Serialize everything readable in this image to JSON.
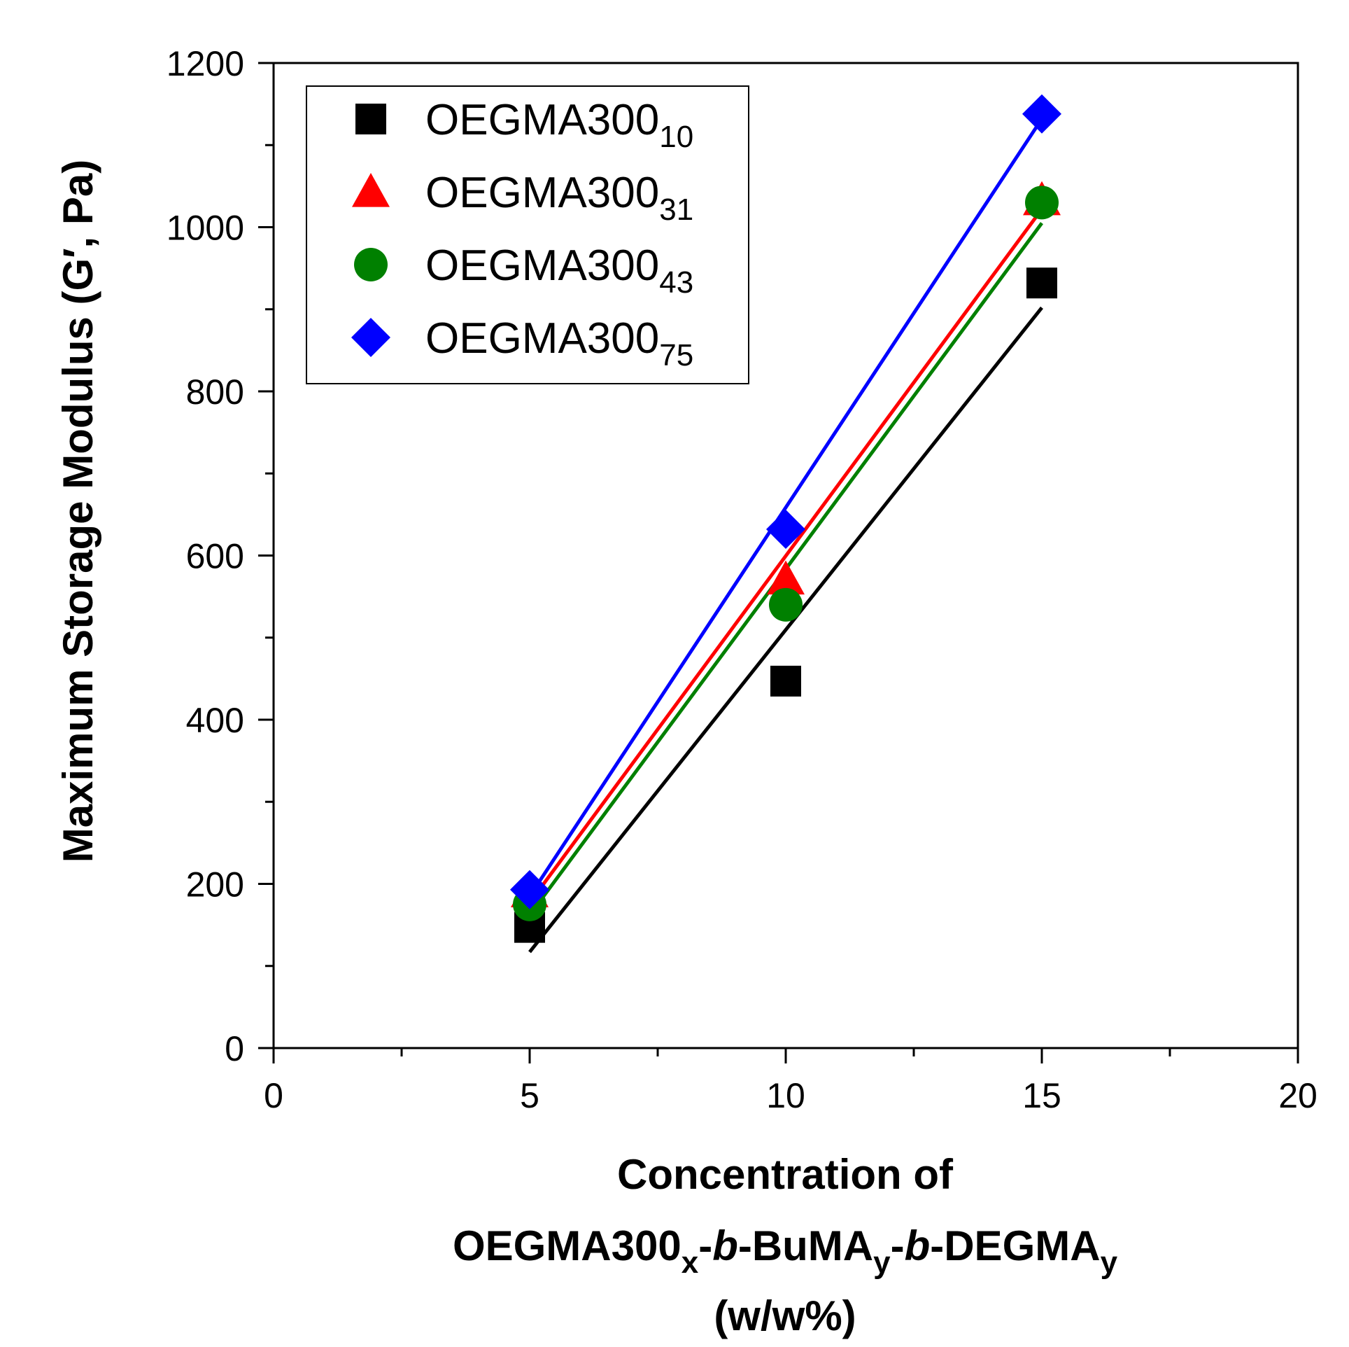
{
  "chart_data": {
    "type": "scatter",
    "title": "",
    "ylabel": "Maximum Storage Modulus (G′, Pa)",
    "xlabel": {
      "line1": "Concentration of",
      "line2_parts": [
        {
          "text": "OEGMA300",
          "style": "normal"
        },
        {
          "text": "x",
          "style": "sub"
        },
        {
          "text": "-",
          "style": "normal"
        },
        {
          "text": "b",
          "style": "italic"
        },
        {
          "text": "-BuMA",
          "style": "normal"
        },
        {
          "text": "y",
          "style": "sub"
        },
        {
          "text": "-",
          "style": "normal"
        },
        {
          "text": "b",
          "style": "italic"
        },
        {
          "text": "-DEGMA",
          "style": "normal"
        },
        {
          "text": "y",
          "style": "sub"
        }
      ],
      "line3": "(w/w%)"
    },
    "xlim": [
      0,
      20
    ],
    "ylim": [
      0,
      1200
    ],
    "xticks": [
      0,
      5,
      10,
      15,
      20
    ],
    "yticks": [
      0,
      200,
      400,
      600,
      800,
      1000,
      1200
    ],
    "xticklabels": [
      "0",
      "5",
      "10",
      "15",
      "20"
    ],
    "yticklabels": [
      "0",
      "200",
      "400",
      "600",
      "800",
      "1000",
      "1200"
    ],
    "legend_position": "top-left",
    "grid": false,
    "series": [
      {
        "name": "OEGMA300",
        "subscript": "10",
        "color": "#000000",
        "marker": "square",
        "x": [
          5,
          10,
          15
        ],
        "y": [
          147,
          447,
          932
        ],
        "fit": {
          "x": [
            5,
            15
          ],
          "y": [
            117,
            902
          ]
        }
      },
      {
        "name": "OEGMA300",
        "subscript": "31",
        "color": "#ff0000",
        "marker": "triangle",
        "x": [
          5,
          10,
          15
        ],
        "y": [
          190,
          571,
          1033
        ],
        "fit": {
          "x": [
            5,
            15
          ],
          "y": [
            177,
            1022
          ]
        }
      },
      {
        "name": "OEGMA300",
        "subscript": "43",
        "color": "#008000",
        "marker": "circle",
        "x": [
          5,
          10,
          15
        ],
        "y": [
          175,
          540,
          1030
        ],
        "fit": {
          "x": [
            5,
            15
          ],
          "y": [
            162,
            1005
          ]
        }
      },
      {
        "name": "OEGMA300",
        "subscript": "75",
        "color": "#0000ff",
        "marker": "diamond",
        "x": [
          5,
          10,
          15
        ],
        "y": [
          193,
          632,
          1138
        ],
        "fit": {
          "x": [
            5,
            15
          ],
          "y": [
            185,
            1132
          ]
        }
      }
    ]
  }
}
